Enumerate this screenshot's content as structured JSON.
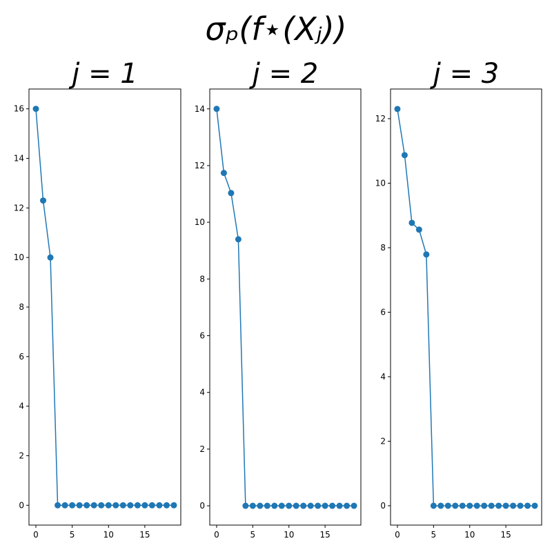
{
  "title": "σₚ(f⋆(Xⱼ))",
  "chart_data": [
    {
      "type": "line",
      "title": "j = 1",
      "color": "#1f77b4",
      "marker": "circle",
      "x": [
        0,
        1,
        2,
        3,
        4,
        5,
        6,
        7,
        8,
        9,
        10,
        11,
        12,
        13,
        14,
        15,
        16,
        17,
        18,
        19
      ],
      "values": [
        16,
        12.3,
        10,
        0,
        0,
        0,
        0,
        0,
        0,
        0,
        0,
        0,
        0,
        0,
        0,
        0,
        0,
        0,
        0,
        0
      ],
      "xlim": [
        -0.95,
        19.95
      ],
      "xticks": [
        0,
        5,
        10,
        15
      ],
      "ylim": [
        -0.8,
        16.8
      ],
      "yticks": [
        0,
        2,
        4,
        6,
        8,
        10,
        12,
        14,
        16
      ]
    },
    {
      "type": "line",
      "title": "j = 2",
      "color": "#1f77b4",
      "marker": "circle",
      "x": [
        0,
        1,
        2,
        3,
        4,
        5,
        6,
        7,
        8,
        9,
        10,
        11,
        12,
        13,
        14,
        15,
        16,
        17,
        18,
        19
      ],
      "values": [
        14,
        11.74,
        11.03,
        9.4,
        0,
        0,
        0,
        0,
        0,
        0,
        0,
        0,
        0,
        0,
        0,
        0,
        0,
        0,
        0,
        0
      ],
      "xlim": [
        -0.95,
        19.95
      ],
      "xticks": [
        0,
        5,
        10,
        15
      ],
      "ylim": [
        -0.68,
        14.7
      ],
      "yticks": [
        0,
        2,
        4,
        6,
        8,
        10,
        12,
        14
      ]
    },
    {
      "type": "line",
      "title": "j = 3",
      "color": "#1f77b4",
      "marker": "circle",
      "x": [
        0,
        1,
        2,
        3,
        4,
        5,
        6,
        7,
        8,
        9,
        10,
        11,
        12,
        13,
        14,
        15,
        16,
        17,
        18,
        19
      ],
      "values": [
        12.3,
        10.87,
        8.77,
        8.56,
        7.79,
        0,
        0,
        0,
        0,
        0,
        0,
        0,
        0,
        0,
        0,
        0,
        0,
        0,
        0,
        0
      ],
      "xlim": [
        -0.95,
        19.95
      ],
      "xticks": [
        0,
        5,
        10,
        15
      ],
      "ylim": [
        -0.6,
        12.92
      ],
      "yticks": [
        0,
        2,
        4,
        6,
        8,
        10,
        12
      ]
    }
  ]
}
